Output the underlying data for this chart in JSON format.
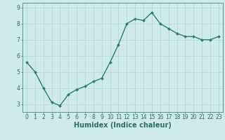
{
  "x": [
    0,
    1,
    2,
    3,
    4,
    5,
    6,
    7,
    8,
    9,
    10,
    11,
    12,
    13,
    14,
    15,
    16,
    17,
    18,
    19,
    20,
    21,
    22,
    23
  ],
  "y": [
    5.6,
    5.0,
    4.0,
    3.1,
    2.9,
    3.6,
    3.9,
    4.1,
    4.4,
    4.6,
    5.6,
    6.7,
    8.0,
    8.3,
    8.2,
    8.7,
    8.0,
    7.7,
    7.4,
    7.2,
    7.2,
    7.0,
    7.0,
    7.2
  ],
  "xlabel": "Humidex (Indice chaleur)",
  "ylim": [
    2.5,
    9.3
  ],
  "xlim": [
    -0.5,
    23.5
  ],
  "yticks": [
    3,
    4,
    5,
    6,
    7,
    8,
    9
  ],
  "xticks": [
    0,
    1,
    2,
    3,
    4,
    5,
    6,
    7,
    8,
    9,
    10,
    11,
    12,
    13,
    14,
    15,
    16,
    17,
    18,
    19,
    20,
    21,
    22,
    23
  ],
  "line_color": "#2e7d6e",
  "marker_color": "#2e7d6e",
  "bg_color": "#ceeaea",
  "grid_color": "#b8d8d8",
  "axis_color": "#5a9a8a",
  "tick_label_color": "#2e6e60",
  "xlabel_color": "#2e6e60",
  "xlabel_fontsize": 7,
  "tick_fontsize": 5.5,
  "line_width": 1.0,
  "marker_size": 2.0
}
